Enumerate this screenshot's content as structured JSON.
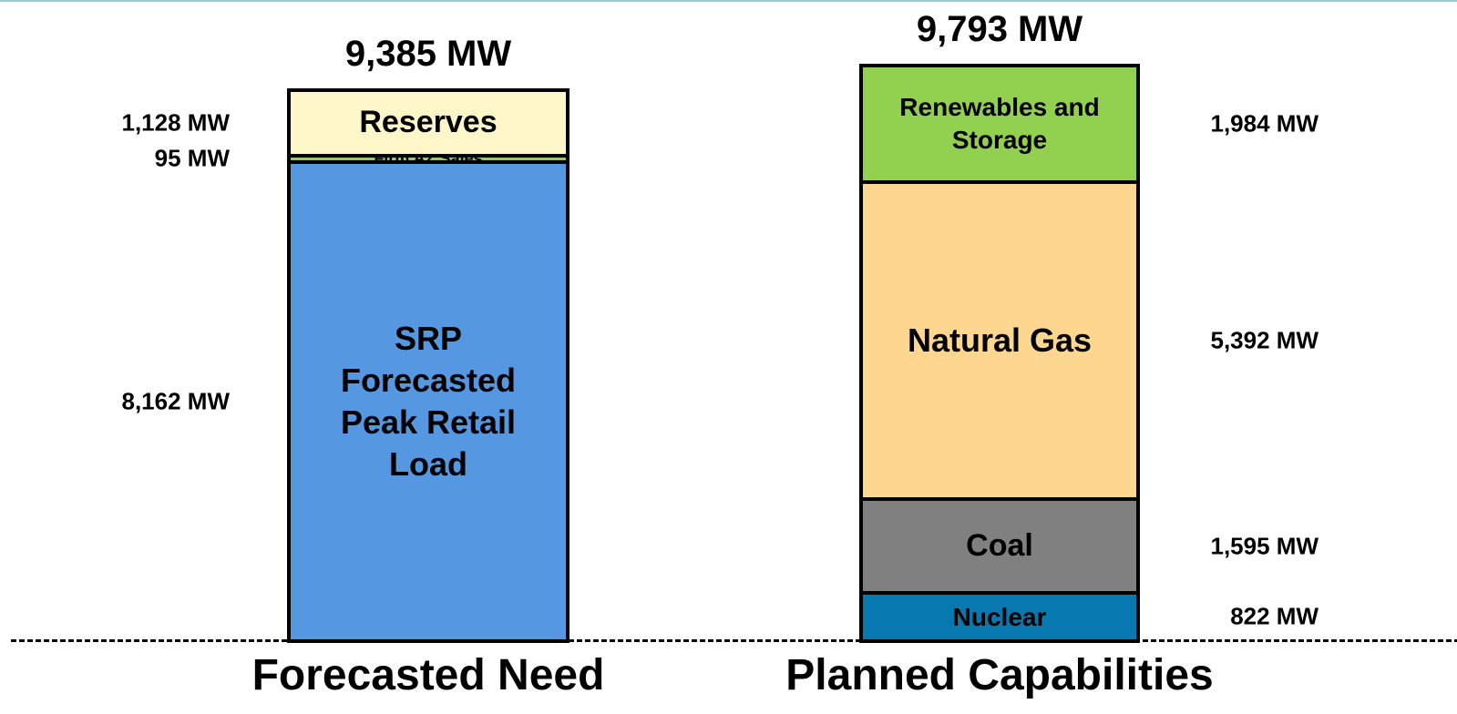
{
  "chart_data": {
    "type": "stacked-bar",
    "bars": [
      {
        "category": "Forecasted Need",
        "total": 9385,
        "total_label": "9,385 MW",
        "segments": [
          {
            "name": "SRP Forecasted Peak Retail Load",
            "value": 8162,
            "value_label": "8,162 MW",
            "color": "#5597e0"
          },
          {
            "name": "Firm AZ Sales",
            "value": 95,
            "value_label": "95 MW",
            "color": "#92d050"
          },
          {
            "name": "Reserves",
            "value": 1128,
            "value_label": "1,128 MW",
            "color": "#fdf6c8"
          }
        ]
      },
      {
        "category": "Planned Capabilities",
        "total": 9793,
        "total_label": "9,793 MW",
        "segments": [
          {
            "name": "Nuclear",
            "value": 822,
            "value_label": "822 MW",
            "color": "#0779b0"
          },
          {
            "name": "Coal",
            "value": 1595,
            "value_label": "1,595 MW",
            "color": "#808080"
          },
          {
            "name": "Natural Gas",
            "value": 5392,
            "value_label": "5,392 MW",
            "color": "#fdd68f"
          },
          {
            "name": "Renewables and Storage",
            "value": 1984,
            "value_label": "1,984 MW",
            "color": "#92d050"
          }
        ]
      }
    ]
  }
}
